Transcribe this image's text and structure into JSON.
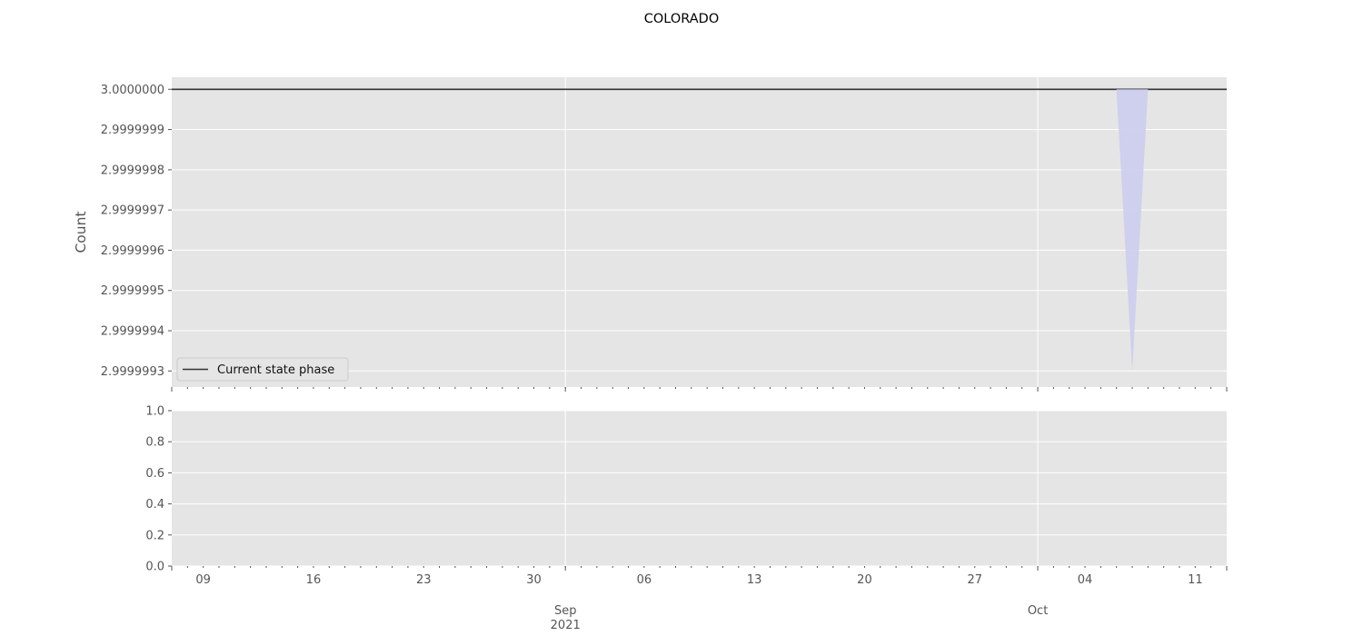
{
  "chart_data": {
    "type": "line",
    "title": "COLORADO",
    "x_dates": [
      "2021-08-07",
      "2021-10-13"
    ],
    "panels": [
      {
        "name": "top",
        "ylabel": "Count",
        "ylim": [
          2.99999926,
          3.00000003
        ],
        "yticks": [
          2.9999993,
          2.9999994,
          2.9999995,
          2.9999996,
          2.9999997,
          2.9999998,
          2.9999999,
          3.0
        ],
        "ytick_labels": [
          "2.9999993",
          "2.9999994",
          "2.9999995",
          "2.9999996",
          "2.9999997",
          "2.9999998",
          "2.9999999",
          "3.0000000"
        ],
        "series": [
          {
            "name": "Current state phase",
            "kind": "line",
            "color": "#333333",
            "x": [
              "2021-08-07",
              "2021-10-13"
            ],
            "y": [
              3.0,
              3.0
            ]
          },
          {
            "kind": "band",
            "color": "#ccccee",
            "x": [
              "2021-10-06",
              "2021-10-07",
              "2021-10-08"
            ],
            "upper": [
              3.0,
              3.0,
              3.0
            ],
            "lower": [
              3.0,
              2.9999993,
              3.0
            ]
          }
        ],
        "legend": {
          "position": "lower-left"
        }
      },
      {
        "name": "bottom",
        "ylim": [
          0.0,
          1.0
        ],
        "yticks": [
          0.0,
          0.2,
          0.4,
          0.6,
          0.8,
          1.0
        ],
        "ytick_labels": [
          "0.0",
          "0.2",
          "0.4",
          "0.6",
          "0.8",
          "1.0"
        ]
      }
    ],
    "xticks_minor": [
      "2021-08-09",
      "2021-08-16",
      "2021-08-23",
      "2021-08-30",
      "2021-09-06",
      "2021-09-13",
      "2021-09-20",
      "2021-09-27",
      "2021-10-04",
      "2021-10-11"
    ],
    "xtick_labels_minor": [
      "09",
      "16",
      "23",
      "30",
      "06",
      "13",
      "20",
      "27",
      "04",
      "11"
    ],
    "xticks_major": [
      "2021-09-01",
      "2021-10-01"
    ],
    "xtick_labels_major": [
      "Sep\n2021",
      "Oct"
    ],
    "grid": true,
    "style": {
      "background": "#e5e5e5",
      "grid_color": "#ffffff"
    }
  }
}
